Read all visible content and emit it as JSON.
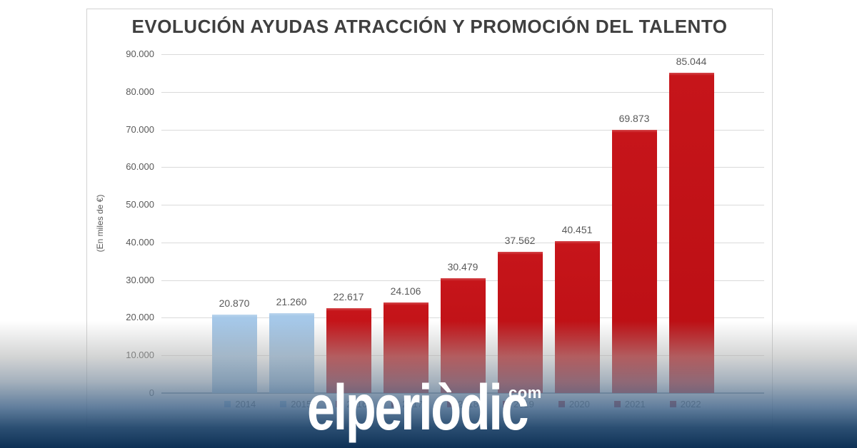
{
  "watermark": {
    "brand": "elperiòdic",
    "tld": "com"
  },
  "colors": {
    "blue_bar": "#9dc3e6",
    "red_bar": "#c00d12",
    "band_bottom": "#0e3156",
    "grid": "#dadada",
    "text_gray": "#595959",
    "title_gray": "#3f3f3f",
    "watermark_white": "#ffffff"
  },
  "chart_data": {
    "type": "bar",
    "title": "EVOLUCIÓN AYUDAS ATRACCIÓN Y PROMOCIÓN DEL TALENTO",
    "ylabel": "(En miles de €)",
    "xlabel": "",
    "categories": [
      "2014",
      "2015",
      "2016",
      "2017",
      "2018",
      "2019",
      "2020",
      "2021",
      "2022"
    ],
    "values": [
      20870,
      21260,
      22617,
      24106,
      30479,
      37562,
      40451,
      69873,
      85044
    ],
    "value_labels": [
      "20.870",
      "21.260",
      "22.617",
      "24.106",
      "30.479",
      "37.562",
      "40.451",
      "69.873",
      "85.044"
    ],
    "bar_colors": [
      "blue",
      "blue",
      "red",
      "red",
      "red",
      "red",
      "red",
      "red",
      "red"
    ],
    "ylim": [
      0,
      90000
    ],
    "ytick_step": 10000,
    "ytick_labels": [
      "0",
      "10.000",
      "20.000",
      "30.000",
      "40.000",
      "50.000",
      "60.000",
      "70.000",
      "80.000",
      "90.000"
    ],
    "grid": true,
    "legend_position": "bottom",
    "legend_entries": [
      "2014",
      "2015",
      "2016",
      "2017",
      "2018",
      "2019",
      "2020",
      "2021",
      "2022"
    ],
    "visible_legend_entries_note": "2016-2019 legend entries are occluded by the watermark logo"
  }
}
